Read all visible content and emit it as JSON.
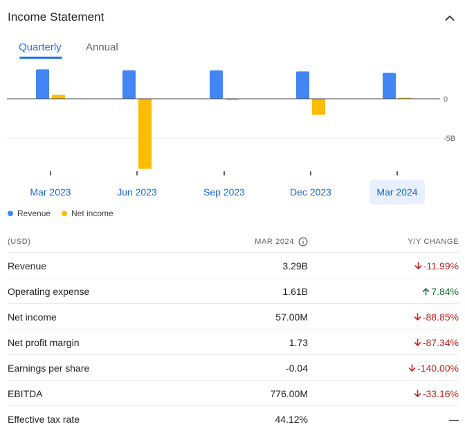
{
  "header": {
    "title": "Income Statement",
    "collapse_icon": "chevron-up-icon"
  },
  "tabs": [
    {
      "label": "Quarterly",
      "active": true
    },
    {
      "label": "Annual",
      "active": false
    }
  ],
  "chart_data": {
    "type": "bar",
    "categories": [
      "Mar 2023",
      "Jun 2023",
      "Sep 2023",
      "Dec 2023",
      "Mar 2024"
    ],
    "series": [
      {
        "name": "Revenue",
        "color": "#4285f4",
        "values": [
          3.74,
          3.62,
          3.61,
          3.48,
          3.29
        ]
      },
      {
        "name": "Net income",
        "color": "#fbbc04",
        "values": [
          0.51,
          -8.9,
          -0.16,
          -2.02,
          0.057
        ]
      }
    ],
    "ylim": [
      -10,
      4
    ],
    "yticks": [
      {
        "value": 0,
        "label": "0"
      },
      {
        "value": -5,
        "label": "-5B"
      }
    ],
    "selected_index": 4
  },
  "legend": [
    {
      "label": "Revenue",
      "color": "#4285f4"
    },
    {
      "label": "Net income",
      "color": "#fbbc04"
    }
  ],
  "table": {
    "col_unit": "(USD)",
    "col_period": "MAR 2024",
    "col_change": "Y/Y CHANGE",
    "rows": [
      {
        "label": "Revenue",
        "value": "3.29B",
        "change": "-11.99%",
        "dir": "down"
      },
      {
        "label": "Operating expense",
        "value": "1.61B",
        "change": "7.84%",
        "dir": "up"
      },
      {
        "label": "Net income",
        "value": "57.00M",
        "change": "-88.85%",
        "dir": "down"
      },
      {
        "label": "Net profit margin",
        "value": "1.73",
        "change": "-87.34%",
        "dir": "down"
      },
      {
        "label": "Earnings per share",
        "value": "-0.04",
        "change": "-140.00%",
        "dir": "down"
      },
      {
        "label": "EBITDA",
        "value": "776.00M",
        "change": "-33.16%",
        "dir": "down"
      },
      {
        "label": "Effective tax rate",
        "value": "44.12%",
        "change": "—",
        "dir": "none"
      }
    ]
  }
}
